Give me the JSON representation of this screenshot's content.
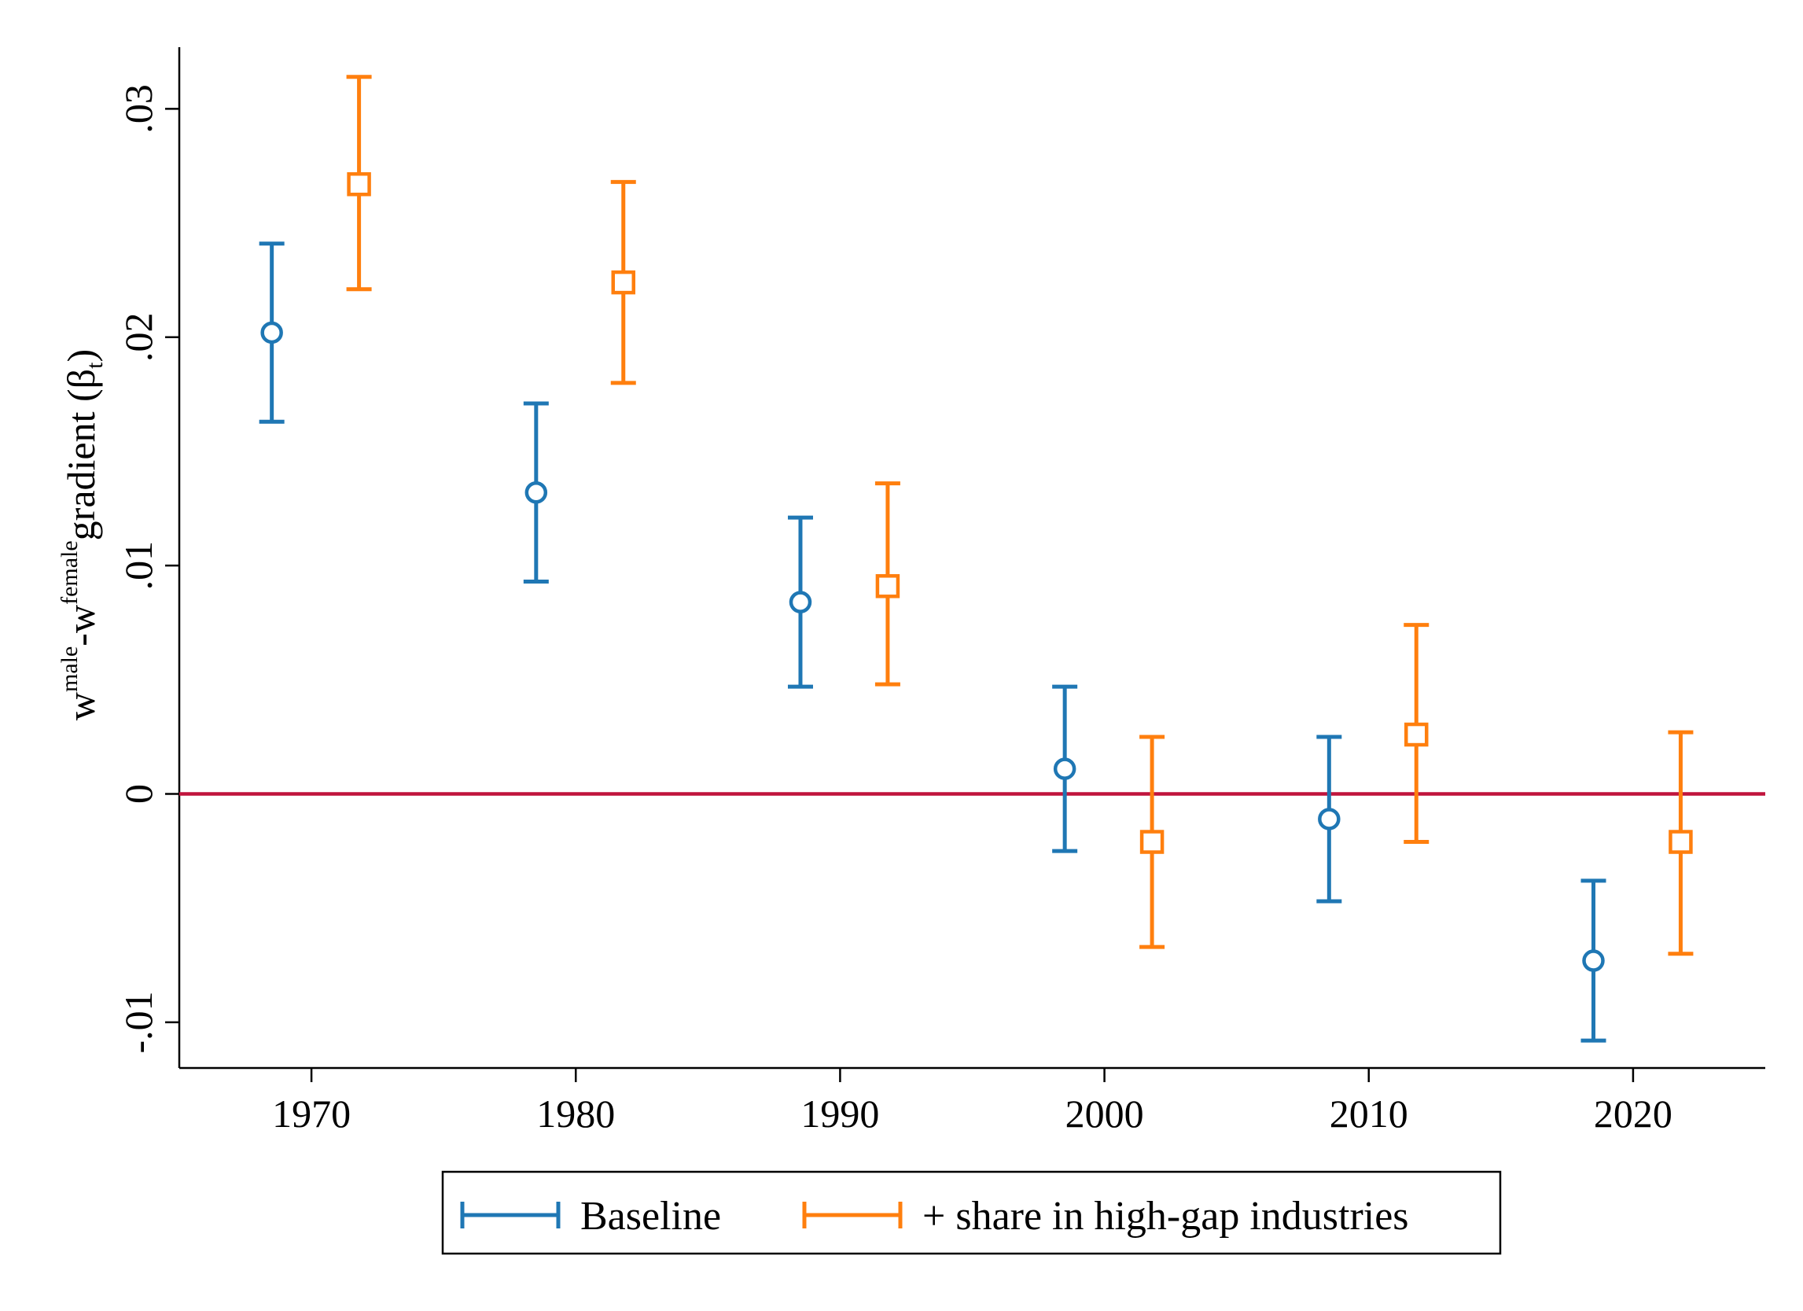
{
  "colors": {
    "baseline": "#1f77b4",
    "controls": "#ff7f0e",
    "zero_line": "#c0143c",
    "axis": "#000000"
  },
  "chart_data": {
    "type": "scatter",
    "chart_style": "point estimates with error bars (coefficient plot)",
    "title": "",
    "xlabel": "",
    "ylabel": {
      "base": "w",
      "sup1": "male",
      "mid": "-w",
      "sup2": "female",
      "rest": "gradient (β",
      "sub": "t",
      "close": ")"
    },
    "xlim": [
      1965,
      2025
    ],
    "ylim": [
      -0.012,
      0.0327
    ],
    "x_ticks": [
      {
        "value": 1970,
        "label": "1970"
      },
      {
        "value": 1980,
        "label": "1980"
      },
      {
        "value": 1990,
        "label": "1990"
      },
      {
        "value": 2000,
        "label": "2000"
      },
      {
        "value": 2010,
        "label": "2010"
      },
      {
        "value": 2020,
        "label": "2020"
      }
    ],
    "y_ticks": [
      {
        "value": -0.01,
        "label": "-.01"
      },
      {
        "value": 0,
        "label": "0"
      },
      {
        "value": 0.01,
        "label": ".01"
      },
      {
        "value": 0.02,
        "label": ".02"
      },
      {
        "value": 0.03,
        "label": ".03"
      }
    ],
    "reference_line": {
      "y": 0
    },
    "grid": false,
    "legend_position": "bottom",
    "series": [
      {
        "name": "Baseline",
        "marker": "circle",
        "color": "#1f77b4",
        "points": [
          {
            "x": 1968.5,
            "y": 0.0202,
            "lo": 0.0163,
            "hi": 0.0241
          },
          {
            "x": 1978.5,
            "y": 0.0132,
            "lo": 0.0093,
            "hi": 0.0171
          },
          {
            "x": 1988.5,
            "y": 0.0084,
            "lo": 0.0047,
            "hi": 0.0121
          },
          {
            "x": 1998.5,
            "y": 0.0011,
            "lo": -0.0025,
            "hi": 0.0047
          },
          {
            "x": 2008.5,
            "y": -0.0011,
            "lo": -0.0047,
            "hi": 0.0025
          },
          {
            "x": 2018.5,
            "y": -0.0073,
            "lo": -0.0108,
            "hi": -0.0038
          }
        ]
      },
      {
        "name": "+ share in high-gap industries",
        "marker": "square",
        "color": "#ff7f0e",
        "points": [
          {
            "x": 1971.8,
            "y": 0.0267,
            "lo": 0.0221,
            "hi": 0.0314
          },
          {
            "x": 1981.8,
            "y": 0.0224,
            "lo": 0.018,
            "hi": 0.0268
          },
          {
            "x": 1991.8,
            "y": 0.0091,
            "lo": 0.0048,
            "hi": 0.0136
          },
          {
            "x": 2001.8,
            "y": -0.0021,
            "lo": -0.0067,
            "hi": 0.0025
          },
          {
            "x": 2011.8,
            "y": 0.0026,
            "lo": -0.0021,
            "hi": 0.0074
          },
          {
            "x": 2021.8,
            "y": -0.0021,
            "lo": -0.007,
            "hi": 0.0027
          }
        ]
      }
    ]
  }
}
